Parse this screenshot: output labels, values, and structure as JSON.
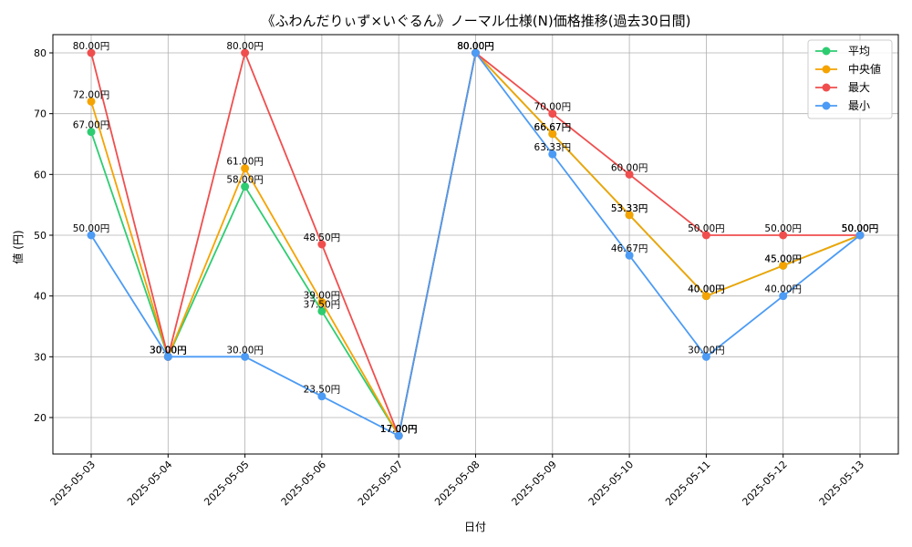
{
  "chart_data": {
    "type": "line",
    "title": "《ふわんだりぃず×いぐるん》ノーマル仕様(N)価格推移(過去30日間)",
    "xlabel": "日付",
    "ylabel": "値 (円)",
    "x": [
      "2025-05-03",
      "2025-05-04",
      "2025-05-05",
      "2025-05-06",
      "2025-05-07",
      "2025-05-08",
      "2025-05-09",
      "2025-05-10",
      "2025-05-11",
      "2025-05-12",
      "2025-05-13"
    ],
    "ylim": [
      14,
      83
    ],
    "yticks": [
      20,
      30,
      40,
      50,
      60,
      70,
      80
    ],
    "grid": true,
    "legend_position": "top-right",
    "value_suffix": "円",
    "series": [
      {
        "name": "平均",
        "color": "#2ecc71",
        "values": [
          67.0,
          30.0,
          58.0,
          37.5,
          17.0,
          80.0,
          66.67,
          53.33,
          40.0,
          45.0,
          50.0
        ]
      },
      {
        "name": "中央値",
        "color": "#f5a300",
        "values": [
          72.0,
          30.0,
          61.0,
          39.0,
          17.0,
          80.0,
          66.67,
          53.33,
          40.0,
          45.0,
          50.0
        ]
      },
      {
        "name": "最大",
        "color": "#f04e4e",
        "values": [
          80.0,
          30.0,
          80.0,
          48.5,
          17.0,
          80.0,
          70.0,
          60.0,
          50.0,
          50.0,
          50.0
        ]
      },
      {
        "name": "最小",
        "color": "#4c9bf5",
        "values": [
          50.0,
          30.0,
          30.0,
          23.5,
          17.0,
          80.0,
          63.33,
          46.67,
          30.0,
          40.0,
          50.0
        ]
      }
    ]
  }
}
